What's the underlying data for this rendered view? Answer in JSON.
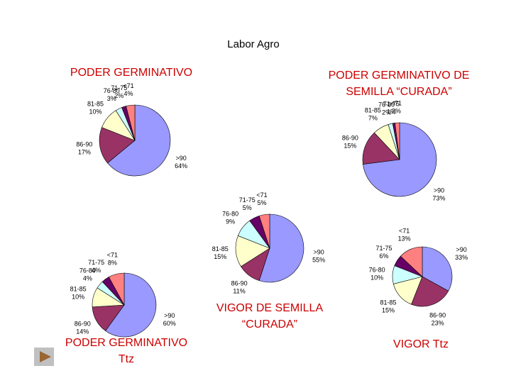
{
  "header": {
    "title": "Labor Agro"
  },
  "chart_data": [
    {
      "type": "pie",
      "title": [
        "PODER GERMINATIVO"
      ],
      "categories": [
        ">90",
        "86-90",
        "81-85",
        "76-80",
        "71-75",
        "<71"
      ],
      "values": [
        64,
        17,
        10,
        3,
        2,
        4
      ],
      "value_labels": [
        "64%",
        "17%",
        "10%",
        "3%",
        "2%",
        "4%"
      ],
      "colors": [
        "#9999ff",
        "#993366",
        "#ffffcc",
        "#ccffff",
        "#660066",
        "#ff8080"
      ]
    },
    {
      "type": "pie",
      "title": [
        "PODER GERMINATIVO DE",
        "SEMILLA “CURADA”"
      ],
      "categories": [
        ">90",
        "86-90",
        "81-85",
        "76-80",
        "71-75",
        "<71"
      ],
      "values": [
        73,
        15,
        7,
        2,
        1,
        2
      ],
      "value_labels": [
        "73%",
        "15%",
        "7%",
        "2%",
        "1%",
        "2%"
      ],
      "colors": [
        "#9999ff",
        "#993366",
        "#ffffcc",
        "#ccffff",
        "#660066",
        "#ff8080"
      ]
    },
    {
      "type": "pie",
      "title": [
        "VIGOR DE SEMILLA",
        "“CURADA”"
      ],
      "categories": [
        ">90",
        "86-90",
        "81-85",
        "76-80",
        "71-75",
        "<71"
      ],
      "values": [
        55,
        11,
        15,
        9,
        5,
        5
      ],
      "value_labels": [
        "55%",
        "11%",
        "15%",
        "9%",
        "5%",
        "5%"
      ],
      "colors": [
        "#9999ff",
        "#993366",
        "#ffffcc",
        "#ccffff",
        "#660066",
        "#ff8080"
      ]
    },
    {
      "type": "pie",
      "title": [
        "PODER GERMINATIVO",
        "Ttz"
      ],
      "categories": [
        ">90",
        "86-90",
        "81-85",
        "76-80",
        "71-75",
        "<71"
      ],
      "values": [
        60,
        14,
        10,
        4,
        4,
        8
      ],
      "value_labels": [
        "60%",
        "14%",
        "10%",
        "4%",
        "4%",
        "8%"
      ],
      "colors": [
        "#9999ff",
        "#993366",
        "#ffffcc",
        "#ccffff",
        "#660066",
        "#ff8080"
      ]
    },
    {
      "type": "pie",
      "title": [
        "VIGOR Ttz"
      ],
      "categories": [
        ">90",
        "86-90",
        "81-85",
        "76-80",
        "71-75",
        "<71"
      ],
      "values": [
        33,
        23,
        15,
        10,
        6,
        13
      ],
      "value_labels": [
        "33%",
        "23%",
        "15%",
        "10%",
        "6%",
        "13%"
      ],
      "colors": [
        "#9999ff",
        "#993366",
        "#ffffcc",
        "#ccffff",
        "#660066",
        "#ff8080"
      ]
    }
  ]
}
